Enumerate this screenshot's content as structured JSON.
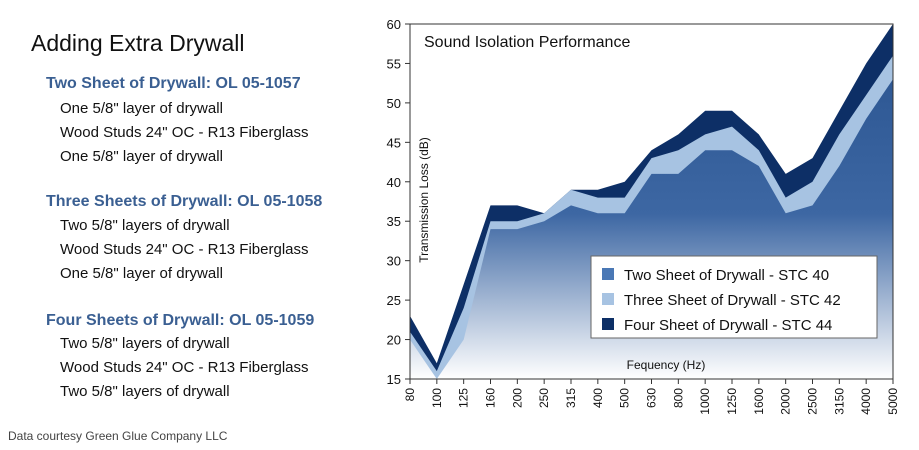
{
  "left_panel": {
    "title": "Adding Extra Drywall",
    "assemblies": [
      {
        "name": "Two Sheet of Drywall: OL 05-1057",
        "layers": [
          "One 5/8\" layer of drywall",
          "Wood Studs 24\" OC - R13 Fiberglass",
          "One 5/8\" layer of drywall"
        ]
      },
      {
        "name": "Three Sheets of Drywall: OL 05-1058",
        "layers": [
          "Two 5/8\" layers of drywall",
          "Wood Studs 24\" OC - R13 Fiberglass",
          "One 5/8\" layer of drywall"
        ]
      },
      {
        "name": "Four Sheets of Drywall: OL 05-1059",
        "layers": [
          "Two 5/8\" layers of drywall",
          "Wood Studs 24\" OC - R13 Fiberglass",
          "Two 5/8\" layers of drywall"
        ]
      }
    ],
    "credit": "Data courtesy Green Glue Company LLC"
  },
  "chart_data": {
    "type": "area",
    "title": "Sound Isolation Performance",
    "xlabel": "Fequency (Hz)",
    "ylabel": "Transmission Loss (dB)",
    "categories": [
      "80",
      "100",
      "125",
      "160",
      "200",
      "250",
      "315",
      "400",
      "500",
      "630",
      "800",
      "1000",
      "1250",
      "1600",
      "2000",
      "2500",
      "3150",
      "4000",
      "5000"
    ],
    "ylim": [
      15,
      60
    ],
    "yticks": [
      15,
      20,
      25,
      30,
      35,
      40,
      45,
      50,
      55,
      60
    ],
    "grid": false,
    "legend_position": "bottom-right",
    "series": [
      {
        "name": "Four Sheet of Drywall - STC 44",
        "color": "#0d2f66",
        "values": [
          23,
          17,
          27,
          37,
          37,
          36,
          39,
          39,
          40,
          44,
          46,
          49,
          49,
          46,
          41,
          43,
          49,
          55,
          60
        ]
      },
      {
        "name": "Three Sheet of Drywall - STC 42",
        "color": "#a7c3e2",
        "values": [
          21,
          16,
          24,
          35,
          35,
          36,
          39,
          38,
          38,
          43,
          44,
          46,
          47,
          44,
          38,
          40,
          46,
          51,
          56
        ]
      },
      {
        "name": "Two Sheet of Drywall - STC 40",
        "color": "#4a78b5",
        "values": [
          20,
          15,
          20,
          34,
          34,
          35,
          37,
          36,
          36,
          41,
          41,
          44,
          44,
          42,
          36,
          37,
          42,
          48,
          53
        ]
      }
    ],
    "legend_order": [
      2,
      1,
      0
    ]
  }
}
